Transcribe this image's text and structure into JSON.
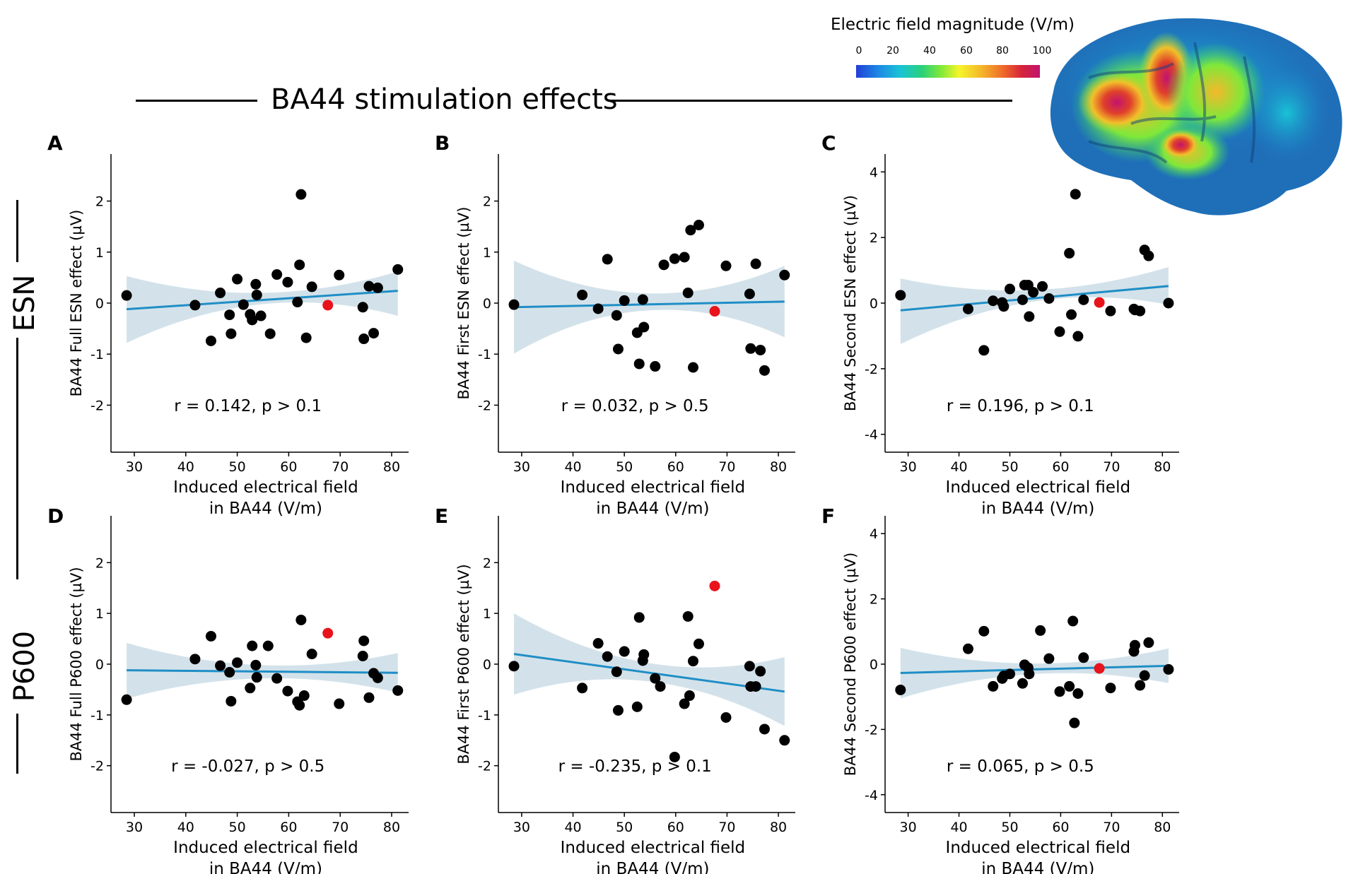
{
  "figure": {
    "main_title": "BA44 stimulation effects",
    "row_labels": [
      "ESN",
      "P600"
    ],
    "colorbar": {
      "title": "Electric field magnitude (V/m)",
      "ticks": [
        "0",
        "20",
        "40",
        "60",
        "80",
        "100"
      ]
    }
  },
  "chart_data": [
    {
      "panel": "A",
      "type": "scatter",
      "ylabel": "BA44 Full ESN effect (µV)",
      "xlabel_line1": "Induced electrical field",
      "xlabel_line2": "in BA44 (V/m)",
      "annotation": "r = 0.142, p > 0.1",
      "xlim": [
        26,
        82
      ],
      "ylim": [
        -2.7,
        2.7
      ],
      "xticks": [
        30,
        40,
        50,
        60,
        70,
        80
      ],
      "yticks": [
        -2,
        -1,
        0,
        1,
        2
      ],
      "fit": {
        "x": [
          28.5,
          81.2
        ],
        "y": [
          -0.12,
          0.24
        ]
      },
      "ci": {
        "upper": [
          0.53,
          0.2,
          0.62
        ],
        "lower": [
          -0.78,
          -0.02,
          -0.25
        ]
      },
      "points_x": [
        28.5,
        41.8,
        44.9,
        46.7,
        48.5,
        48.8,
        50.0,
        51.2,
        52.5,
        52.9,
        53.6,
        53.8,
        54.6,
        56.4,
        57.7,
        59.8,
        61.7,
        62.1,
        63.4,
        64.5,
        69.8,
        74.4,
        74.6,
        75.6,
        76.5,
        77.3,
        81.2
      ],
      "points_y": [
        0.15,
        -0.04,
        -0.74,
        0.2,
        -0.23,
        -0.6,
        0.47,
        -0.03,
        -0.22,
        -0.33,
        0.37,
        0.16,
        -0.25,
        -0.6,
        0.56,
        0.41,
        0.02,
        0.75,
        -0.68,
        0.32,
        0.55,
        -0.08,
        -0.7,
        0.33,
        -0.59,
        0.3,
        0.66
      ],
      "highlight": {
        "x": 67.6,
        "y": -0.04
      },
      "extra": {
        "x": 62.4,
        "y": 2.13
      }
    },
    {
      "panel": "B",
      "type": "scatter",
      "ylabel": "BA44 First ESN effect (µV)",
      "xlabel_line1": "Induced electrical field",
      "xlabel_line2": "in BA44 (V/m)",
      "annotation": "r = 0.032, p > 0.5",
      "xlim": [
        26,
        82
      ],
      "ylim": [
        -2.7,
        2.7
      ],
      "xticks": [
        30,
        40,
        50,
        60,
        70,
        80
      ],
      "yticks": [
        -2,
        -1,
        0,
        1,
        2
      ],
      "fit": {
        "x": [
          28.5,
          81.2
        ],
        "y": [
          -0.08,
          0.03
        ]
      },
      "ci": {
        "upper": [
          0.83,
          0.19,
          0.73
        ],
        "lower": [
          -0.99,
          -0.14,
          -0.67
        ]
      },
      "points_x": [
        28.5,
        41.8,
        44.9,
        46.7,
        48.5,
        48.8,
        50.0,
        52.5,
        52.9,
        53.6,
        53.8,
        56.0,
        57.7,
        59.8,
        61.7,
        62.4,
        63.4,
        64.5,
        69.8,
        74.4,
        74.6,
        75.6,
        76.5,
        77.3,
        81.2
      ],
      "points_y": [
        -0.03,
        0.16,
        -0.11,
        0.86,
        -0.24,
        -0.9,
        0.05,
        -0.58,
        -1.19,
        0.07,
        -0.47,
        -1.24,
        0.75,
        0.87,
        0.9,
        0.2,
        -1.26,
        1.53,
        0.73,
        0.18,
        -0.89,
        0.77,
        -0.92,
        -1.32,
        0.55
      ],
      "highlight": {
        "x": 67.6,
        "y": -0.16
      },
      "extra": {
        "x": 62.9,
        "y": 1.43
      }
    },
    {
      "panel": "C",
      "type": "scatter",
      "ylabel": "BA44 Second ESN effect (µV)",
      "xlabel_line1": "Induced electrical field",
      "xlabel_line2": "in BA44 (V/m)",
      "annotation": "r = 0.196, p > 0.1",
      "xlim": [
        26,
        82
      ],
      "ylim": [
        -4.2,
        4.2
      ],
      "xticks": [
        30,
        40,
        50,
        60,
        70,
        80
      ],
      "yticks": [
        -4,
        -2,
        0,
        2,
        4
      ],
      "fit": {
        "x": [
          28.5,
          81.2
        ],
        "y": [
          -0.22,
          0.52
        ]
      },
      "ci": {
        "upper": [
          0.75,
          0.4,
          1.1
        ],
        "lower": [
          -1.25,
          0.05,
          -0.05
        ]
      },
      "points_x": [
        28.5,
        41.8,
        44.9,
        46.7,
        48.5,
        48.8,
        50.0,
        52.5,
        52.9,
        53.6,
        53.8,
        54.6,
        56.4,
        57.7,
        59.8,
        61.7,
        62.1,
        63.4,
        64.5,
        69.8,
        74.4,
        74.6,
        75.6,
        76.5,
        77.3,
        81.2
      ],
      "points_y": [
        0.24,
        -0.18,
        -1.44,
        0.07,
        0.02,
        -0.1,
        0.43,
        0.1,
        0.55,
        0.55,
        -0.41,
        0.33,
        0.51,
        0.14,
        -0.87,
        1.52,
        -0.35,
        -1.01,
        0.1,
        -0.24,
        -0.18,
        -0.21,
        -0.24,
        1.62,
        1.44,
        0.0
      ],
      "highlight": {
        "x": 67.6,
        "y": 0.02
      },
      "extra": {
        "x": 62.9,
        "y": 3.32
      }
    },
    {
      "panel": "D",
      "type": "scatter",
      "ylabel": "BA44 Full P600 effect (µV)",
      "xlabel_line1": "Induced electrical field",
      "xlabel_line2": "in BA44 (V/m)",
      "annotation": "r = -0.027, p > 0.5",
      "xlim": [
        26,
        82
      ],
      "ylim": [
        -2.7,
        2.7
      ],
      "xticks": [
        30,
        40,
        50,
        60,
        70,
        80
      ],
      "yticks": [
        -2,
        -1,
        0,
        1,
        2
      ],
      "fit": {
        "x": [
          28.5,
          81.2
        ],
        "y": [
          -0.12,
          -0.17
        ]
      },
      "ci": {
        "upper": [
          0.42,
          -0.02,
          0.22
        ],
        "lower": [
          -0.68,
          -0.28,
          -0.56
        ]
      },
      "points_x": [
        28.5,
        41.8,
        44.9,
        46.7,
        48.5,
        48.8,
        50.0,
        52.5,
        52.9,
        53.6,
        53.8,
        56.0,
        57.7,
        59.8,
        61.7,
        62.1,
        62.4,
        63.0,
        64.5,
        69.8,
        74.4,
        74.6,
        75.6,
        76.5,
        77.3,
        81.2
      ],
      "points_y": [
        -0.7,
        0.1,
        0.55,
        -0.03,
        -0.16,
        -0.73,
        0.03,
        -0.47,
        0.36,
        -0.02,
        -0.26,
        0.36,
        -0.28,
        -0.53,
        -0.74,
        -0.81,
        0.87,
        -0.62,
        0.2,
        -0.78,
        0.16,
        0.46,
        -0.66,
        -0.18,
        -0.27,
        -0.52
      ],
      "highlight": {
        "x": 67.6,
        "y": 0.61
      },
      "extra": null
    },
    {
      "panel": "E",
      "type": "scatter",
      "ylabel": "BA44 First P600 effect (µV)",
      "xlabel_line1": "Induced electrical field",
      "xlabel_line2": "in BA44 (V/m)",
      "annotation": "r = -0.235, p > 0.1",
      "xlim": [
        26,
        82
      ],
      "ylim": [
        -2.7,
        2.7
      ],
      "xticks": [
        30,
        40,
        50,
        60,
        70,
        80
      ],
      "yticks": [
        -2,
        -1,
        0,
        1,
        2
      ],
      "fit": {
        "x": [
          28.5,
          81.2
        ],
        "y": [
          0.2,
          -0.54
        ]
      },
      "ci": {
        "upper": [
          1.0,
          0.02,
          0.14
        ],
        "lower": [
          -0.6,
          -0.34,
          -1.22
        ]
      },
      "points_x": [
        28.5,
        41.8,
        44.9,
        46.7,
        48.5,
        48.8,
        50.0,
        52.5,
        52.9,
        53.6,
        53.8,
        56.0,
        57.0,
        59.8,
        61.7,
        62.4,
        62.7,
        63.4,
        64.5,
        69.8,
        74.4,
        74.6,
        75.6,
        76.5,
        77.3,
        81.2
      ],
      "points_y": [
        -0.04,
        -0.47,
        0.41,
        0.15,
        -0.15,
        -0.91,
        0.25,
        -0.84,
        0.92,
        0.07,
        0.19,
        -0.28,
        -0.44,
        -1.83,
        -0.78,
        0.94,
        -0.62,
        0.06,
        0.4,
        -1.05,
        -0.04,
        -0.44,
        -0.44,
        -0.14,
        -1.28,
        -1.5
      ],
      "highlight": {
        "x": 67.6,
        "y": 1.54
      },
      "extra": null
    },
    {
      "panel": "F",
      "type": "scatter",
      "ylabel": "BA44 Second P600 effect (µV)",
      "xlabel_line1": "Induced electrical field",
      "xlabel_line2": "in BA44 (V/m)",
      "annotation": "r = 0.065, p > 0.5",
      "xlim": [
        26,
        82
      ],
      "ylim": [
        -4.2,
        4.2
      ],
      "xticks": [
        30,
        40,
        50,
        60,
        70,
        80
      ],
      "yticks": [
        -4,
        -2,
        0,
        2,
        4
      ],
      "fit": {
        "x": [
          28.5,
          81.2
        ],
        "y": [
          -0.27,
          -0.05
        ]
      },
      "ci": {
        "upper": [
          0.5,
          0.02,
          0.48
        ],
        "lower": [
          -1.05,
          -0.3,
          -0.58
        ]
      },
      "points_x": [
        28.5,
        41.8,
        44.9,
        46.7,
        48.5,
        48.8,
        50.0,
        52.5,
        52.9,
        53.6,
        53.8,
        56.0,
        57.7,
        59.8,
        61.7,
        62.4,
        62.7,
        63.4,
        64.5,
        69.8,
        74.4,
        74.6,
        75.6,
        76.5,
        77.3,
        81.2
      ],
      "points_y": [
        -0.79,
        0.47,
        1.01,
        -0.68,
        -0.44,
        -0.36,
        -0.3,
        -0.59,
        -0.02,
        -0.11,
        -0.3,
        1.03,
        0.17,
        -0.84,
        -0.68,
        1.32,
        -1.8,
        -0.9,
        0.2,
        -0.73,
        0.39,
        0.58,
        -0.65,
        -0.35,
        0.66,
        -0.16
      ],
      "highlight": {
        "x": 67.6,
        "y": -0.13
      },
      "extra": null
    }
  ]
}
